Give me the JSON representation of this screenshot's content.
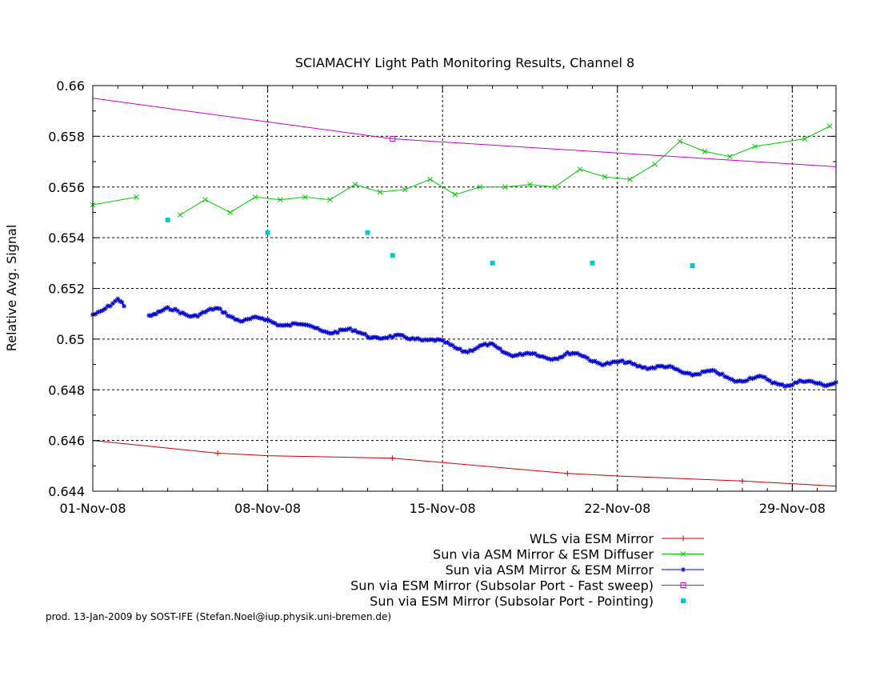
{
  "chart_data": {
    "type": "line",
    "title": "SCIAMACHY Light Path Monitoring Results, Channel 8",
    "xlabel": "",
    "ylabel": "Relative Avg. Signal",
    "x_unit": "date",
    "xlim": [
      "2008-11-01",
      "2008-11-30T18:00"
    ],
    "ylim": [
      0.644,
      0.66
    ],
    "x_ticks": [
      "01-Nov-08",
      "08-Nov-08",
      "15-Nov-08",
      "22-Nov-08",
      "29-Nov-08"
    ],
    "x_tick_dates": [
      "2008-11-01",
      "2008-11-08",
      "2008-11-15",
      "2008-11-22",
      "2008-11-29"
    ],
    "y_ticks": [
      "0.644",
      "0.646",
      "0.648",
      "0.65",
      "0.652",
      "0.654",
      "0.656",
      "0.658",
      "0.66"
    ],
    "grid": true,
    "legend_position": "bottom-right, below plot",
    "series": [
      {
        "name": "WLS via ESM Mirror",
        "color": "#cc0000",
        "marker": "plus",
        "x": [
          "2008-11-01",
          "2008-11-06",
          "2008-11-08",
          "2008-11-13",
          "2008-11-20",
          "2008-11-22",
          "2008-11-27",
          "2008-11-30T18:00"
        ],
        "y": [
          0.646,
          0.6455,
          0.6454,
          0.6453,
          0.6447,
          0.6446,
          0.6444,
          0.6442
        ],
        "markers_at": [
          "2008-11-06",
          "2008-11-13",
          "2008-11-20",
          "2008-11-27"
        ]
      },
      {
        "name": "Sun via ASM Mirror & ESM Diffuser",
        "color": "#00cc00",
        "marker": "x",
        "segments": [
          {
            "x": [
              "2008-11-01",
              "2008-11-02T18:00"
            ],
            "y": [
              0.6553,
              0.6556
            ]
          },
          {
            "x": [
              "2008-11-04T12:00",
              "2008-11-05T12:00",
              "2008-11-06T12:00",
              "2008-11-07T12:00",
              "2008-11-08T12:00",
              "2008-11-09T12:00",
              "2008-11-10T12:00",
              "2008-11-11T12:00",
              "2008-11-12T12:00",
              "2008-11-13T12:00",
              "2008-11-14T12:00",
              "2008-11-15T12:00",
              "2008-11-16T12:00",
              "2008-11-17T12:00",
              "2008-11-18T12:00",
              "2008-11-19T12:00",
              "2008-11-20T12:00",
              "2008-11-21T12:00",
              "2008-11-22T12:00",
              "2008-11-23T12:00",
              "2008-11-24T12:00",
              "2008-11-25T12:00",
              "2008-11-26T12:00",
              "2008-11-27T12:00",
              "2008-11-29T12:00",
              "2008-11-30T12:00"
            ],
            "y": [
              0.6549,
              0.6555,
              0.655,
              0.6556,
              0.6555,
              0.6556,
              0.6555,
              0.6561,
              0.6558,
              0.6559,
              0.6563,
              0.6557,
              0.656,
              0.656,
              0.6561,
              0.656,
              0.6567,
              0.6564,
              0.6563,
              0.6569,
              0.6578,
              0.6574,
              0.6572,
              0.6576,
              0.6579,
              0.6584
            ]
          }
        ]
      },
      {
        "name": "Sun via ASM Mirror & ESM Mirror",
        "color": "#0000cc",
        "marker": "star",
        "segments": [
          {
            "x": [
              "2008-11-01",
              "2008-11-01T12:00",
              "2008-11-02",
              "2008-11-02T06:00"
            ],
            "y": [
              0.651,
              0.6513,
              0.6515,
              0.6513
            ]
          },
          {
            "x": [
              "2008-11-03T06:00",
              "2008-11-04",
              "2008-11-05",
              "2008-11-06",
              "2008-11-07",
              "2008-11-08",
              "2008-11-09",
              "2008-11-10",
              "2008-11-11",
              "2008-11-12",
              "2008-11-13",
              "2008-11-14",
              "2008-11-15",
              "2008-11-16",
              "2008-11-17",
              "2008-11-18",
              "2008-11-19",
              "2008-11-20",
              "2008-11-21",
              "2008-11-22",
              "2008-11-23",
              "2008-11-24",
              "2008-11-25",
              "2008-11-26",
              "2008-11-27",
              "2008-11-28",
              "2008-11-29",
              "2008-11-30",
              "2008-11-30T18:00"
            ],
            "y": [
              0.651,
              0.6511,
              0.651,
              0.6511,
              0.6508,
              0.6507,
              0.6506,
              0.6504,
              0.6503,
              0.6502,
              0.65,
              0.6501,
              0.6498,
              0.6496,
              0.6497,
              0.6494,
              0.6493,
              0.6494,
              0.6492,
              0.649,
              0.649,
              0.6488,
              0.6487,
              0.6486,
              0.6484,
              0.6484,
              0.6482,
              0.6483,
              0.6483
            ]
          }
        ]
      },
      {
        "name": "Sun via ESM Mirror (Subsolar Port - Fast sweep)",
        "color": "#cc00cc",
        "marker": "square",
        "x": [
          "2008-11-01",
          "2008-11-13",
          "2008-11-30T18:00"
        ],
        "y": [
          0.6595,
          0.6579,
          0.6568
        ],
        "markers_at": [
          "2008-11-13"
        ]
      },
      {
        "name": "Sun via ESM Mirror (Subsolar Port - Pointing)",
        "color": "#00cccc",
        "marker": "filled-square",
        "points_only": true,
        "x": [
          "2008-11-04",
          "2008-11-08",
          "2008-11-12",
          "2008-11-13",
          "2008-11-17",
          "2008-11-21",
          "2008-11-25"
        ],
        "y": [
          0.6547,
          0.6542,
          0.6542,
          0.6533,
          0.653,
          0.653,
          0.6529
        ]
      }
    ]
  },
  "footer": {
    "text": "prod. 13-Jan-2009 by SOST-IFE (Stefan.Noel@iup.physik.uni-bremen.de)"
  }
}
